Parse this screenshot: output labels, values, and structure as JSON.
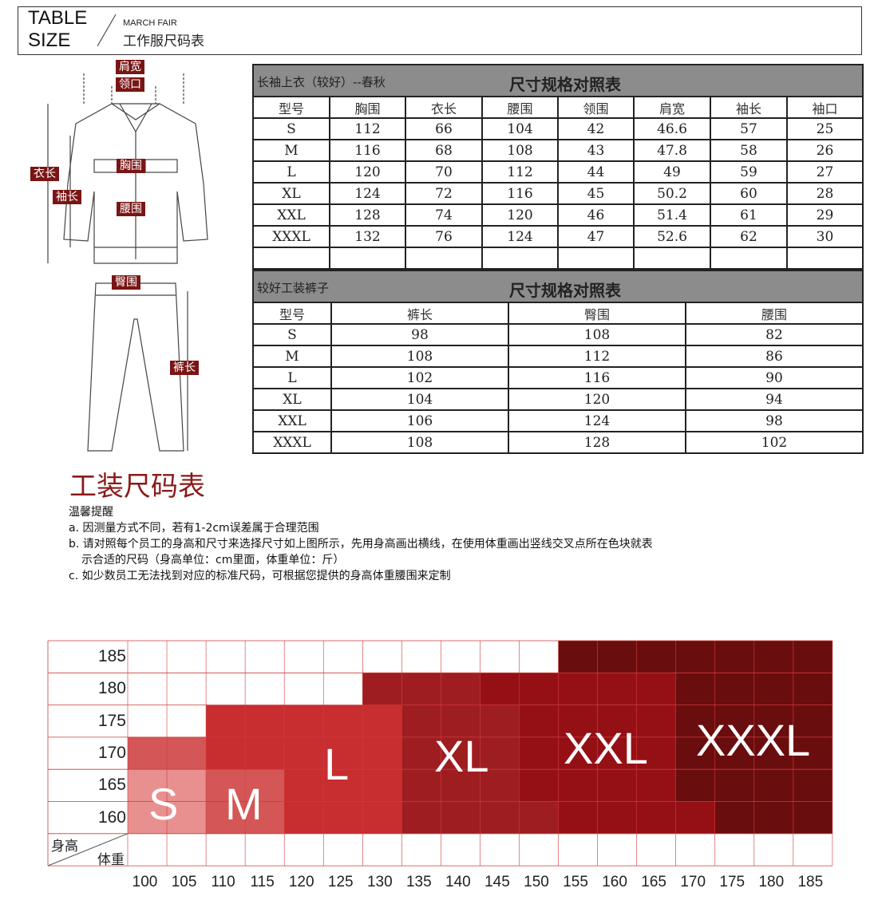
{
  "header": {
    "line1": "TABLE",
    "line2": "SIZE",
    "sub_en": "MARCH FAIR",
    "sub_cn": "工作服尺码表"
  },
  "diagram_labels": {
    "shoulder": "肩宽",
    "collar": "领口",
    "length": "衣长",
    "sleeve": "袖长",
    "chest": "胸围",
    "waist": "腰围",
    "hip": "臀围",
    "pants_length": "裤长"
  },
  "shirt_table": {
    "left_title": "长袖上衣（较好）--春秋",
    "title": "尺寸规格对照表",
    "headers": [
      "型号",
      "胸围",
      "衣长",
      "腰围",
      "领围",
      "肩宽",
      "袖长",
      "袖口"
    ],
    "rows": [
      [
        "S",
        "112",
        "66",
        "104",
        "42",
        "46.6",
        "57",
        "25"
      ],
      [
        "M",
        "116",
        "68",
        "108",
        "43",
        "47.8",
        "58",
        "26"
      ],
      [
        "L",
        "120",
        "70",
        "112",
        "44",
        "49",
        "59",
        "27"
      ],
      [
        "XL",
        "124",
        "72",
        "116",
        "45",
        "50.2",
        "60",
        "28"
      ],
      [
        "XXL",
        "128",
        "74",
        "120",
        "46",
        "51.4",
        "61",
        "29"
      ],
      [
        "XXXL",
        "132",
        "76",
        "124",
        "47",
        "52.6",
        "62",
        "30"
      ],
      [
        "",
        "",
        "",
        "",
        "",
        "",
        "",
        ""
      ]
    ]
  },
  "pants_table": {
    "left_title": "较好工装裤子",
    "title": "尺寸规格对照表",
    "headers": [
      "型号",
      "裤长",
      "臀围",
      "腰围"
    ],
    "rows": [
      [
        "S",
        "98",
        "108",
        "82"
      ],
      [
        "M",
        "108",
        "112",
        "86"
      ],
      [
        "L",
        "102",
        "116",
        "90"
      ],
      [
        "XL",
        "104",
        "120",
        "94"
      ],
      [
        "XXL",
        "106",
        "124",
        "98"
      ],
      [
        "XXXL",
        "108",
        "128",
        "102"
      ]
    ]
  },
  "notes": {
    "heading": "工装尺码表",
    "title": "温馨提醒",
    "lines": [
      "a. 因测量方式不同，若有1-2cm误差属于合理范围",
      "b. 请对照每个员工的身高和尺寸来选择尺寸如上图所示，先用身高画出横线，在使用体重画出竖线交叉点所在色块就表",
      "示合适的尺码（身高单位：cm里面，体重单位：斤）",
      "c. 如少数员工无法找到对应的标准尺码，可根据您提供的身高体重腰围来定制"
    ]
  },
  "chart_data": {
    "type": "heatmap",
    "xlabel": "体重",
    "ylabel": "身高",
    "x": [
      "100",
      "105",
      "110",
      "115",
      "120",
      "125",
      "130",
      "135",
      "140",
      "145",
      "150",
      "155",
      "160",
      "165",
      "170",
      "175",
      "180",
      "185"
    ],
    "y": [
      "185",
      "180",
      "175",
      "170",
      "165",
      "160"
    ],
    "grid": [
      [
        "",
        "",
        "",
        "",
        "",
        "",
        "",
        "",
        "",
        "",
        "",
        "XXXL",
        "XXXL",
        "XXXL",
        "XXXL",
        "XXXL",
        "XXXL",
        "XXXL"
      ],
      [
        "",
        "",
        "",
        "",
        "",
        "",
        "XL",
        "XL",
        "XL",
        "XXL",
        "XXL",
        "XXL",
        "XXL",
        "XXL",
        "XXXL",
        "XXXL",
        "XXXL",
        "XXXL"
      ],
      [
        "",
        "",
        "L",
        "L",
        "L",
        "L",
        "L",
        "XL",
        "XL",
        "XL",
        "XXL",
        "XXL",
        "XXL",
        "XXL",
        "XXXL",
        "XXXL",
        "XXXL",
        "XXXL"
      ],
      [
        "M",
        "M",
        "L",
        "L",
        "L",
        "L",
        "L",
        "XL",
        "XL",
        "XL",
        "XXL",
        "XXL",
        "XXL",
        "XXL",
        "XXXL",
        "XXXL",
        "XXXL",
        "XXXL"
      ],
      [
        "S",
        "S",
        "M",
        "M",
        "L",
        "L",
        "L",
        "XL",
        "XL",
        "XL",
        "XXL",
        "XXL",
        "XXL",
        "XXL",
        "XXXL",
        "XXXL",
        "XXXL",
        "XXXL"
      ],
      [
        "S",
        "S",
        "M",
        "M",
        "L",
        "L",
        "L",
        "XL",
        "XL",
        "XL",
        "XL",
        "XXL",
        "XXL",
        "XXL",
        "XXL",
        "XXXL",
        "XXXL",
        "XXXL"
      ]
    ],
    "size_labels": [
      "S",
      "M",
      "L",
      "XL",
      "XXL",
      "XXXL"
    ],
    "colors": {
      "S": "#e89090",
      "M": "#d45656",
      "L": "#c82d30",
      "XL": "#9e1d20",
      "XXL": "#951015",
      "XXXL": "#6a0d0e",
      "grid": "#d03a3a"
    }
  }
}
